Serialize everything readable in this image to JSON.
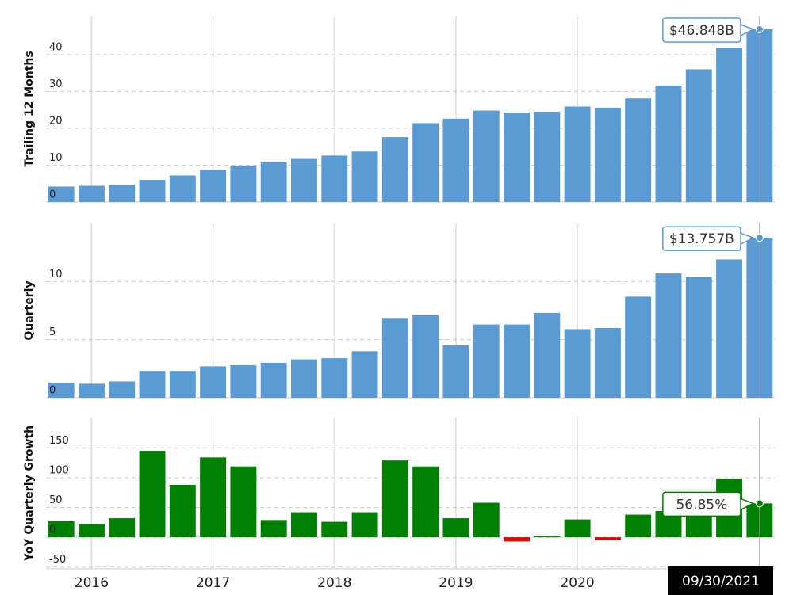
{
  "chart_data": [
    {
      "type": "bar",
      "ylabel": "Trailing 12 Months",
      "color": "#5b9bd5",
      "values": [
        4.2,
        4.4,
        4.7,
        6.0,
        7.2,
        8.7,
        9.9,
        10.8,
        11.7,
        12.6,
        13.7,
        17.6,
        21.4,
        22.6,
        24.8,
        24.3,
        24.5,
        25.9,
        25.6,
        28.1,
        31.6,
        36.0,
        41.8,
        46.848
      ],
      "value_labels": [
        null,
        null,
        null,
        null,
        null,
        null,
        null,
        null,
        null,
        null,
        null,
        null,
        null,
        null,
        null,
        null,
        null,
        null,
        null,
        null,
        null,
        null,
        null,
        "$46.848B"
      ],
      "ylim": [
        0,
        50.5
      ],
      "yticks": [
        0,
        10,
        20,
        30,
        40
      ],
      "grid": true
    },
    {
      "type": "bar",
      "ylabel": "Quarterly",
      "color": "#5b9bd5",
      "values": [
        1.3,
        1.2,
        1.4,
        2.3,
        2.3,
        2.7,
        2.8,
        3.0,
        3.3,
        3.4,
        4.0,
        6.8,
        7.1,
        4.5,
        6.3,
        6.3,
        7.3,
        5.9,
        6.0,
        8.7,
        10.7,
        10.4,
        11.9,
        13.757
      ],
      "value_labels": [
        null,
        null,
        null,
        null,
        null,
        null,
        null,
        null,
        null,
        null,
        null,
        null,
        null,
        null,
        null,
        null,
        null,
        null,
        null,
        null,
        null,
        null,
        null,
        "$13.757B"
      ],
      "ylim": [
        0,
        15
      ],
      "yticks": [
        0,
        5,
        10
      ],
      "grid": true
    },
    {
      "type": "bar",
      "ylabel": "YoY Quarterly Growth",
      "color": "#008000",
      "negative_color": "#e00000",
      "categories": [
        null,
        "2016",
        null,
        null,
        null,
        "2017",
        null,
        null,
        null,
        "2018",
        null,
        null,
        null,
        "2019",
        null,
        null,
        null,
        "2020",
        null,
        null,
        null,
        null,
        null,
        null
      ],
      "values": [
        27,
        22,
        32,
        145,
        88,
        134,
        119,
        29,
        42,
        26,
        42,
        129,
        119,
        32,
        58,
        -7,
        2,
        30,
        -5,
        38,
        44,
        50,
        98,
        56.85
      ],
      "value_labels": [
        null,
        null,
        null,
        null,
        null,
        null,
        null,
        null,
        null,
        null,
        null,
        null,
        null,
        null,
        null,
        null,
        null,
        null,
        null,
        null,
        null,
        null,
        null,
        "56.85%"
      ],
      "ylim": [
        -53,
        201
      ],
      "yticks": [
        -50,
        0,
        50,
        100,
        150
      ],
      "grid": true,
      "crosshair_label": "09/30/2021"
    }
  ]
}
